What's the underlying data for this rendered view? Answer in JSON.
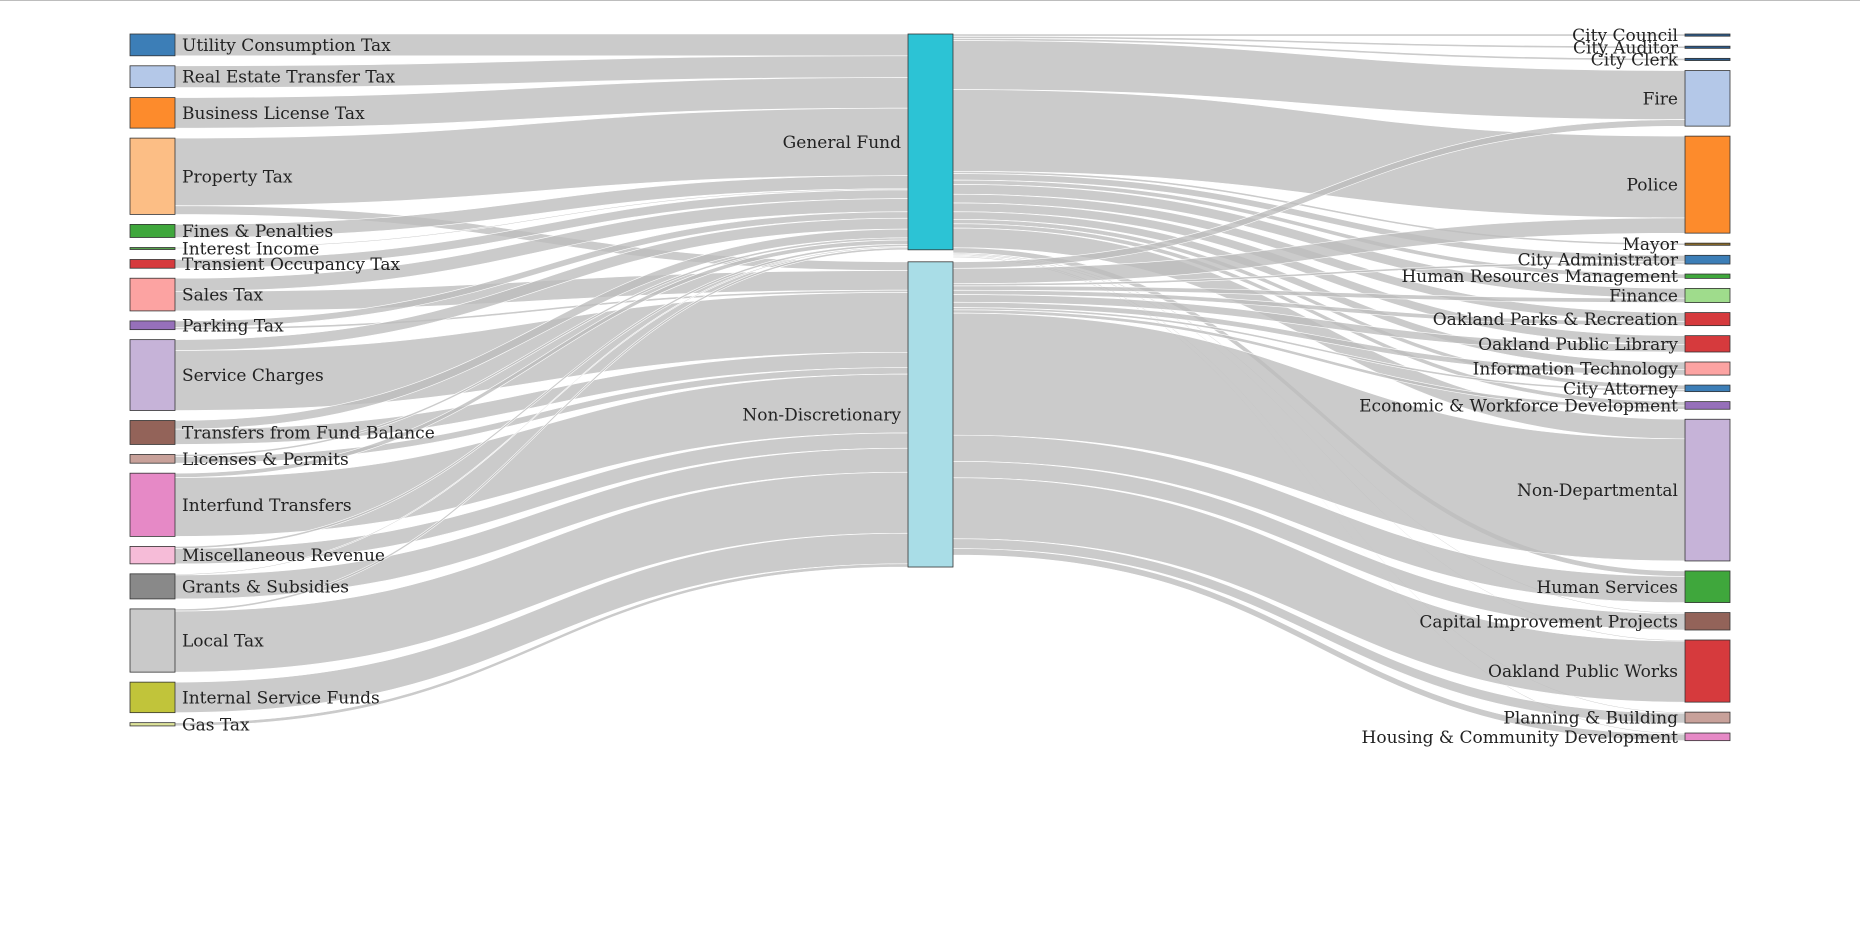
{
  "chart_data": {
    "type": "sankey",
    "title": "",
    "sources": [
      {
        "id": "utility_tax",
        "label": "Utility Consumption Tax",
        "color": "#3c7eb7"
      },
      {
        "id": "re_transfer",
        "label": "Real Estate Transfer Tax",
        "color": "#b4c8e8"
      },
      {
        "id": "bus_license",
        "label": "Business License Tax",
        "color": "#fd8b2c"
      },
      {
        "id": "property_tax",
        "label": "Property Tax",
        "color": "#fcbe85"
      },
      {
        "id": "fines",
        "label": "Fines & Penalties",
        "color": "#3fa73c"
      },
      {
        "id": "interest",
        "label": "Interest Income",
        "color": "#55a24a"
      },
      {
        "id": "transient",
        "label": "Transient Occupancy Tax",
        "color": "#d63a3d"
      },
      {
        "id": "sales_tax",
        "label": "Sales Tax",
        "color": "#fca3a2"
      },
      {
        "id": "parking_tax",
        "label": "Parking Tax",
        "color": "#9670ba"
      },
      {
        "id": "service_charges",
        "label": "Service Charges",
        "color": "#c6b3d8"
      },
      {
        "id": "fund_balance",
        "label": "Transfers from Fund Balance",
        "color": "#936359"
      },
      {
        "id": "licenses",
        "label": "Licenses & Permits",
        "color": "#c8a19a"
      },
      {
        "id": "interfund",
        "label": "Interfund Transfers",
        "color": "#e689c6"
      },
      {
        "id": "misc",
        "label": "Miscellaneous Revenue",
        "color": "#f6bcd8"
      },
      {
        "id": "grants",
        "label": "Grants & Subsidies",
        "color": "#898989"
      },
      {
        "id": "local_tax",
        "label": "Local Tax",
        "color": "#c9c9c9"
      },
      {
        "id": "isf",
        "label": "Internal Service Funds",
        "color": "#c1c43a"
      },
      {
        "id": "gas_tax",
        "label": "Gas Tax",
        "color": "#dde39b"
      }
    ],
    "funds": [
      {
        "id": "general",
        "label": "General Fund",
        "color": "#2cc3d5"
      },
      {
        "id": "nondisc",
        "label": "Non-Discretionary",
        "color": "#a9dde7"
      }
    ],
    "targets": [
      {
        "id": "council",
        "label": "City Council",
        "color": "#2b5a8a"
      },
      {
        "id": "auditor",
        "label": "City Auditor",
        "color": "#2b5a8a"
      },
      {
        "id": "clerk",
        "label": "City Clerk",
        "color": "#2b5a8a"
      },
      {
        "id": "fire",
        "label": "Fire",
        "color": "#b4c8e8"
      },
      {
        "id": "police",
        "label": "Police",
        "color": "#fd8b2c"
      },
      {
        "id": "mayor",
        "label": "Mayor",
        "color": "#8a6a2a"
      },
      {
        "id": "admin",
        "label": "City Administrator",
        "color": "#3c7eb7"
      },
      {
        "id": "hr",
        "label": "Human Resources Management",
        "color": "#3fa73c"
      },
      {
        "id": "finance",
        "label": "Finance",
        "color": "#9fdc8c"
      },
      {
        "id": "parks",
        "label": "Oakland Parks & Recreation",
        "color": "#d63a3d"
      },
      {
        "id": "library",
        "label": "Oakland Public Library",
        "color": "#d63a3d"
      },
      {
        "id": "it",
        "label": "Information Technology",
        "color": "#fca3a2"
      },
      {
        "id": "attorney",
        "label": "City Attorney",
        "color": "#3c7eb7"
      },
      {
        "id": "econ",
        "label": "Economic & Workforce Development",
        "color": "#9670ba"
      },
      {
        "id": "nondept",
        "label": "Non-Departmental",
        "color": "#c6b3d8"
      },
      {
        "id": "human_services",
        "label": "Human Services",
        "color": "#3fa73c"
      },
      {
        "id": "cip",
        "label": "Capital Improvement Projects",
        "color": "#936359"
      },
      {
        "id": "opw",
        "label": "Oakland Public Works",
        "color": "#d63a3d"
      },
      {
        "id": "planning",
        "label": "Planning & Building",
        "color": "#c8a19a"
      },
      {
        "id": "housing",
        "label": "Housing & Community Development",
        "color": "#e689c6"
      }
    ],
    "links_to_general": [
      {
        "source": "utility_tax",
        "value": 20
      },
      {
        "source": "re_transfer",
        "value": 20
      },
      {
        "source": "bus_license",
        "value": 28
      },
      {
        "source": "property_tax",
        "value": 62
      },
      {
        "source": "fines",
        "value": 12
      },
      {
        "source": "interest",
        "value": 1
      },
      {
        "source": "transient",
        "value": 8
      },
      {
        "source": "sales_tax",
        "value": 12
      },
      {
        "source": "parking_tax",
        "value": 6
      },
      {
        "source": "service_charges",
        "value": 10
      },
      {
        "source": "fund_balance",
        "value": 8
      },
      {
        "source": "licenses",
        "value": 2
      },
      {
        "source": "interfund",
        "value": 4
      },
      {
        "source": "misc",
        "value": 2
      },
      {
        "source": "grants",
        "value": 1
      },
      {
        "source": "local_tax",
        "value": 2
      }
    ],
    "links_to_nondisc": [
      {
        "source": "property_tax",
        "value": 8
      },
      {
        "source": "sales_tax",
        "value": 18
      },
      {
        "source": "parking_tax",
        "value": 2
      },
      {
        "source": "service_charges",
        "value": 55
      },
      {
        "source": "fund_balance",
        "value": 14
      },
      {
        "source": "licenses",
        "value": 6
      },
      {
        "source": "interfund",
        "value": 54
      },
      {
        "source": "misc",
        "value": 14
      },
      {
        "source": "grants",
        "value": 22
      },
      {
        "source": "local_tax",
        "value": 56
      },
      {
        "source": "isf",
        "value": 28
      },
      {
        "source": "gas_tax",
        "value": 3
      }
    ],
    "links_from_general": [
      {
        "target": "council",
        "value": 2
      },
      {
        "target": "auditor",
        "value": 2
      },
      {
        "target": "clerk",
        "value": 2
      },
      {
        "target": "fire",
        "value": 45
      },
      {
        "target": "police",
        "value": 75
      },
      {
        "target": "mayor",
        "value": 2
      },
      {
        "target": "admin",
        "value": 6
      },
      {
        "target": "hr",
        "value": 4
      },
      {
        "target": "finance",
        "value": 9
      },
      {
        "target": "parks",
        "value": 8
      },
      {
        "target": "library",
        "value": 8
      },
      {
        "target": "it",
        "value": 7
      },
      {
        "target": "attorney",
        "value": 4
      },
      {
        "target": "econ",
        "value": 4
      },
      {
        "target": "nondept",
        "value": 18
      },
      {
        "target": "human_services",
        "value": 5
      },
      {
        "target": "cip",
        "value": 1
      },
      {
        "target": "opw",
        "value": 1
      },
      {
        "target": "planning",
        "value": 1
      },
      {
        "target": "housing",
        "value": 1
      }
    ],
    "links_from_nondisc": [
      {
        "target": "fire",
        "value": 6
      },
      {
        "target": "police",
        "value": 14
      },
      {
        "target": "admin",
        "value": 2
      },
      {
        "target": "finance",
        "value": 4
      },
      {
        "target": "parks",
        "value": 4
      },
      {
        "target": "library",
        "value": 7
      },
      {
        "target": "it",
        "value": 5
      },
      {
        "target": "attorney",
        "value": 2
      },
      {
        "target": "econ",
        "value": 3
      },
      {
        "target": "nondept",
        "value": 112
      },
      {
        "target": "human_services",
        "value": 24
      },
      {
        "target": "cip",
        "value": 15
      },
      {
        "target": "opw",
        "value": 56
      },
      {
        "target": "planning",
        "value": 9
      },
      {
        "target": "housing",
        "value": 6
      }
    ]
  }
}
